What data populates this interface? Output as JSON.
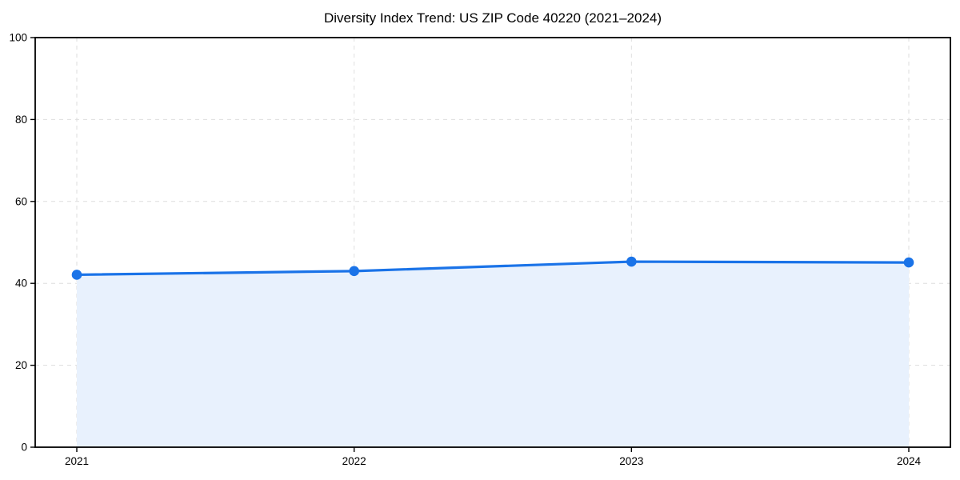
{
  "chart_data": {
    "type": "area",
    "title": "Diversity Index Trend: US ZIP Code 40220 (2021–2024)",
    "categories": [
      "2021",
      "2022",
      "2023",
      "2024"
    ],
    "series": [
      {
        "name": "Diversity Index",
        "values": [
          42.1,
          43.0,
          45.3,
          45.1
        ]
      }
    ],
    "xlabel": "",
    "ylabel": "",
    "ylim": [
      0,
      100
    ],
    "yticks": [
      0,
      20,
      40,
      60,
      80,
      100
    ],
    "grid": "dashed",
    "legend_position": "none",
    "colors": {
      "line": "#1a73e8",
      "marker": "#1a73e8",
      "fill": "#e8f1fd",
      "grid": "#dedede",
      "spine": "#000000",
      "background": "#ffffff",
      "text": "#000000"
    }
  }
}
